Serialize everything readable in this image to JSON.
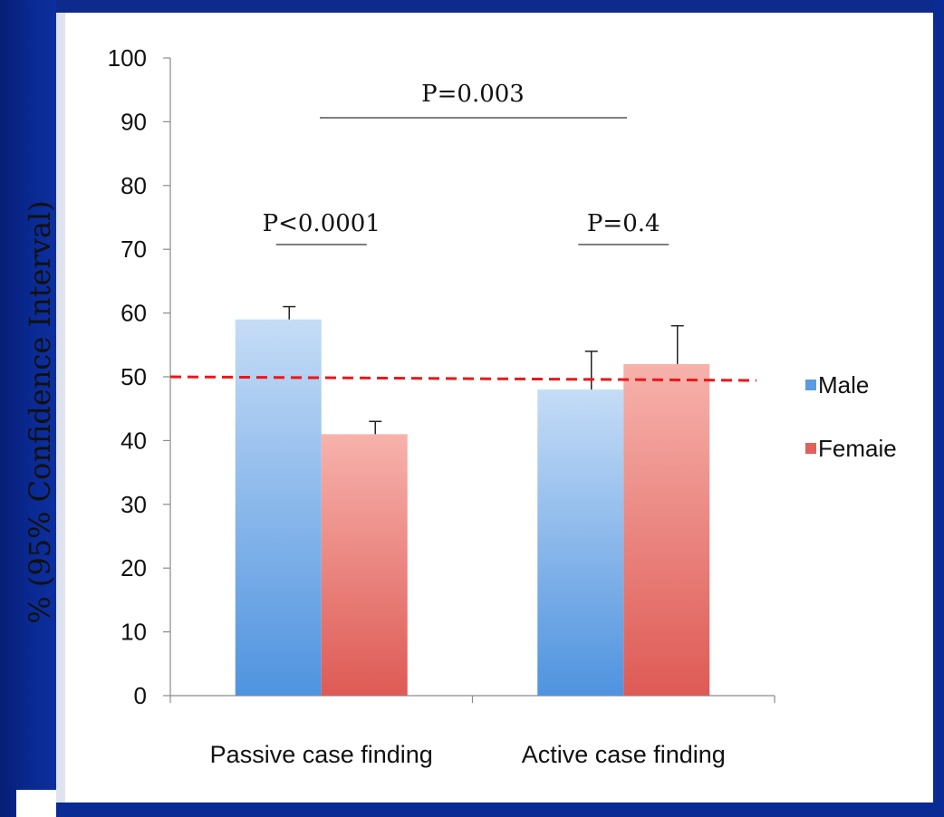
{
  "chart_data": {
    "type": "bar",
    "title": "",
    "xlabel": "",
    "ylabel": "% (95% Confidence Interval)",
    "ylim": [
      0,
      100
    ],
    "ytick_step": 10,
    "yticks": [
      "0",
      "10",
      "20",
      "30",
      "40",
      "50",
      "60",
      "70",
      "80",
      "90",
      "100"
    ],
    "categories": [
      "Passive case finding",
      "Active case finding"
    ],
    "series": [
      {
        "name": "Male",
        "values": [
          59,
          48
        ],
        "error_upper": [
          61,
          54
        ],
        "color": "#5b9bdf"
      },
      {
        "name": "Femaie",
        "values": [
          41,
          52
        ],
        "error_upper": [
          43,
          58
        ],
        "color": "#e0605c"
      }
    ],
    "reference_line": {
      "value": 50,
      "color": "#e8181a",
      "style": "dashed"
    },
    "annotations": [
      {
        "text": "P<0.0001",
        "category": 0
      },
      {
        "text": "P=0.4",
        "category": 1
      },
      {
        "text": "P=0.003",
        "category": "both"
      }
    ],
    "legend": {
      "position": "right"
    },
    "grid": false
  }
}
